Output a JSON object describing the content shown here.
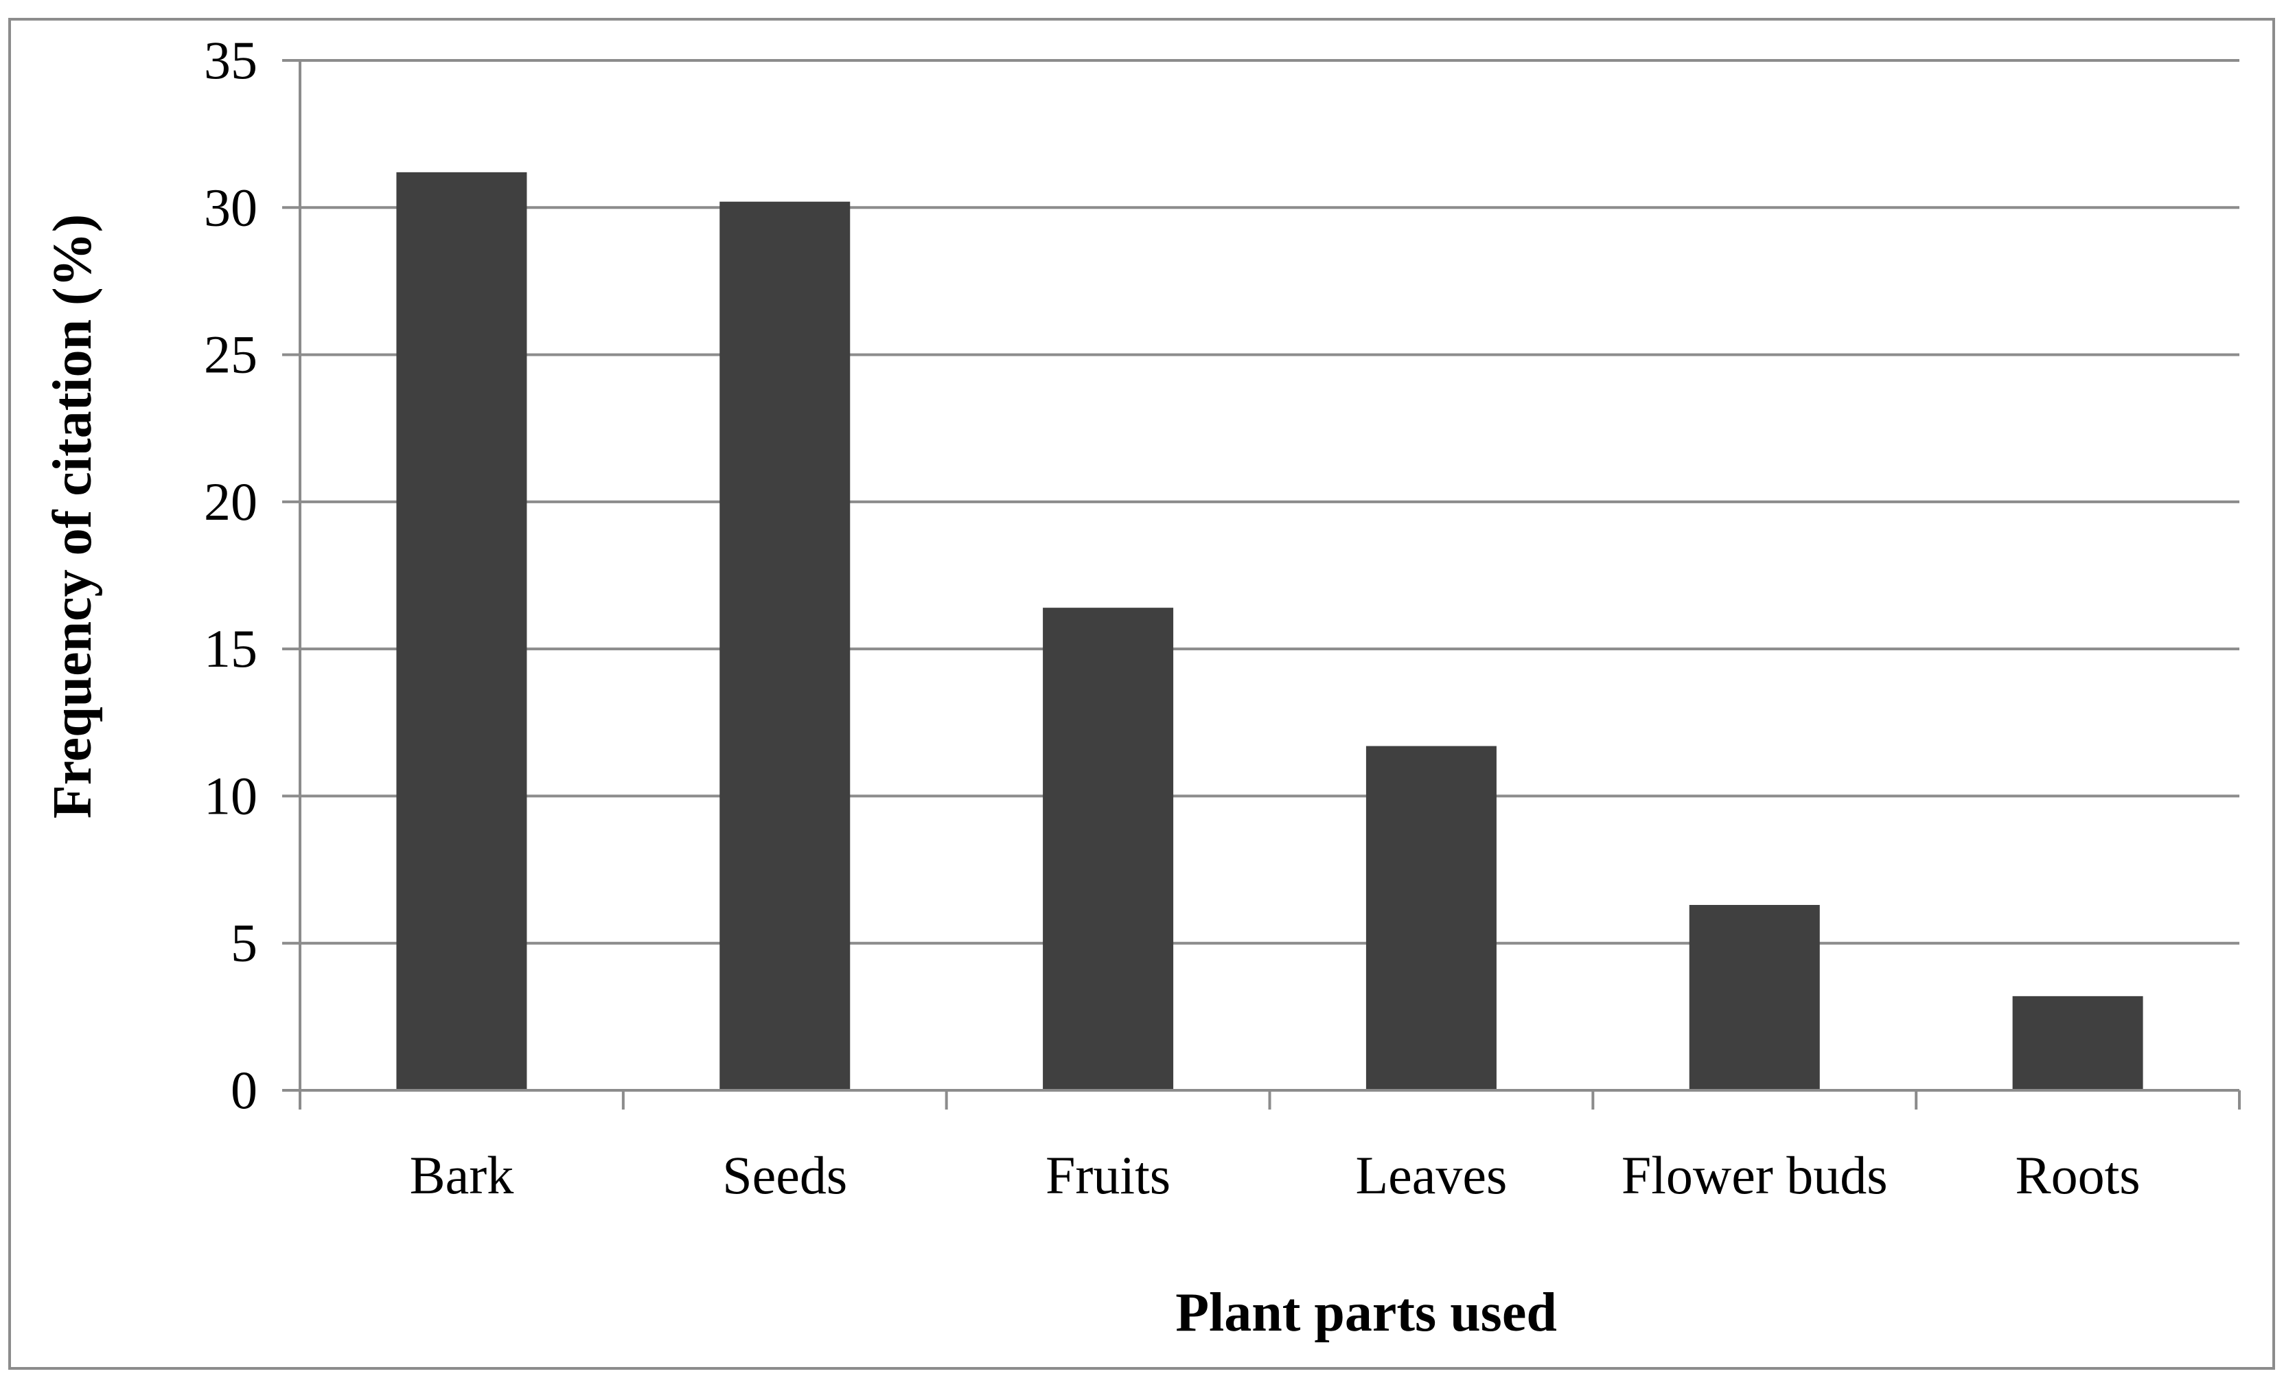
{
  "chart_data": {
    "type": "bar",
    "xlabel": "Plant parts used",
    "ylabel": "Frequency of citation (%)",
    "categories": [
      "Bark",
      "Seeds",
      "Fruits",
      "Leaves",
      "Flower buds",
      "Roots"
    ],
    "values": [
      31.2,
      30.2,
      16.4,
      11.7,
      6.3,
      3.2
    ],
    "ylim": [
      0,
      35
    ],
    "yticks": [
      "0",
      "5",
      "10",
      "15",
      "20",
      "25",
      "30",
      "35"
    ],
    "grid": "horizontal",
    "legend": "none",
    "colors": {
      "bar": "#404040",
      "grid": "#8c8c8c",
      "frame": "#8c8c8c",
      "text": "#000000",
      "background": "#ffffff"
    }
  }
}
